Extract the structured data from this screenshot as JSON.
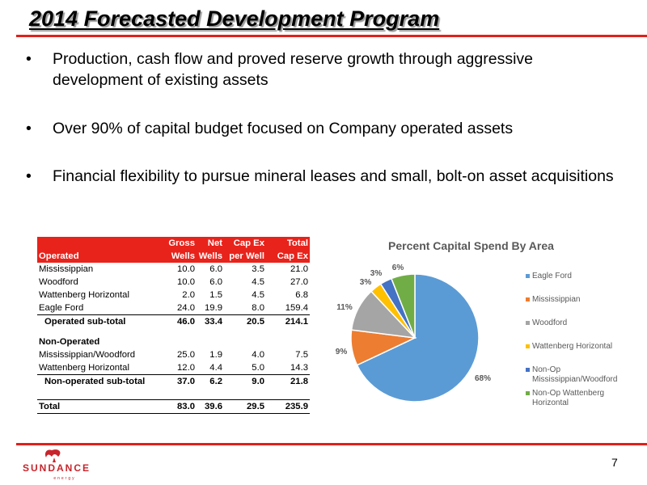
{
  "slide": {
    "title": "2014 Forecasted Development Program",
    "page_number": "7"
  },
  "bullets": [
    "Production, cash flow and proved reserve growth through aggressive development of existing assets",
    "Over 90% of capital budget focused on Company operated assets",
    "Financial flexibility to pursue mineral leases and small, bolt-on asset acquisitions"
  ],
  "bullet_marker": "•",
  "table": {
    "header_top": [
      "",
      "Gross",
      "Net",
      "Cap Ex",
      "Total"
    ],
    "header_bottom": [
      "Operated",
      "Wells",
      "Wells",
      "per Well",
      "Cap Ex"
    ],
    "operated_rows": [
      [
        "Mississippian",
        "10.0",
        "6.0",
        "3.5",
        "21.0"
      ],
      [
        "Woodford",
        "10.0",
        "6.0",
        "4.5",
        "27.0"
      ],
      [
        "Wattenberg Horizontal",
        "2.0",
        "1.5",
        "4.5",
        "6.8"
      ],
      [
        "Eagle Ford",
        "24.0",
        "19.9",
        "8.0",
        "159.4"
      ]
    ],
    "operated_subtotal": [
      "Operated sub-total",
      "46.0",
      "33.4",
      "20.5",
      "214.1"
    ],
    "non_operated_label": "Non-Operated",
    "non_operated_rows": [
      [
        "Mississippian/Woodford",
        "25.0",
        "1.9",
        "4.0",
        "7.5"
      ],
      [
        "Wattenberg Horizontal",
        "12.0",
        "4.4",
        "5.0",
        "14.3"
      ]
    ],
    "non_operated_subtotal": [
      "Non-operated sub-total",
      "37.0",
      "6.2",
      "9.0",
      "21.8"
    ],
    "total": [
      "Total",
      "83.0",
      "39.6",
      "29.5",
      "235.9"
    ]
  },
  "chart_data": {
    "type": "pie",
    "title": "Percent Capital Spend By Area",
    "categories": [
      "Eagle Ford",
      "Mississippian",
      "Woodford",
      "Wattenberg Horizontal",
      "Non-Op Mississippian/Woodford",
      "Non-Op Wattenberg Horizontal"
    ],
    "values": [
      68,
      9,
      11,
      3,
      3,
      6
    ],
    "labels": [
      "68%",
      "9%",
      "11%",
      "3%",
      "3%",
      "6%"
    ],
    "colors": [
      "#5b9bd5",
      "#ed7d31",
      "#a5a5a5",
      "#ffc000",
      "#4472c4",
      "#70ad47"
    ],
    "legend_position": "right"
  },
  "logo": {
    "text": "SUNDANCE",
    "subtext": "energy",
    "color": "#c9242b"
  }
}
